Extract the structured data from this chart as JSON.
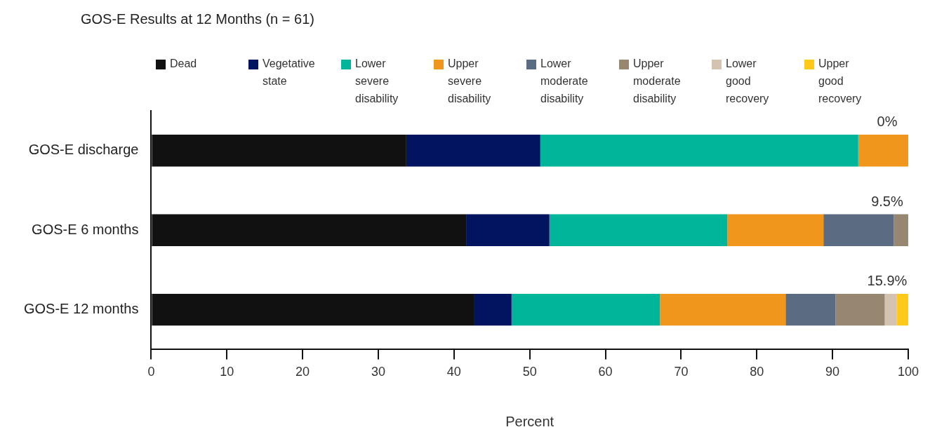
{
  "chart_data": {
    "type": "bar",
    "orientation": "horizontal",
    "stacked": true,
    "title": "GOS-E Results at 12 Months (n = 61)",
    "xlabel": "Percent",
    "categories": [
      "GOS-E discharge",
      "GOS-E 6 months",
      "GOS-E 12 months"
    ],
    "series": [
      {
        "name": "Dead",
        "color": "#111111",
        "values": [
          33.7,
          41.6,
          42.7
        ]
      },
      {
        "name": "Vegetative state",
        "color": "#02135f",
        "values": [
          17.7,
          11.0,
          4.9
        ]
      },
      {
        "name": "Lower severe disability",
        "color": "#00b59a",
        "values": [
          42.0,
          23.5,
          19.6
        ]
      },
      {
        "name": "Upper severe disability",
        "color": "#f0961c",
        "values": [
          6.6,
          12.7,
          16.6
        ]
      },
      {
        "name": "Lower moderate disability",
        "color": "#5a6b82",
        "values": [
          null,
          9.3,
          6.6
        ]
      },
      {
        "name": "Upper moderate disability",
        "color": "#978670",
        "values": [
          null,
          1.9,
          6.5
        ]
      },
      {
        "name": "Lower good recovery",
        "color": "#d3c3b0",
        "values": [
          null,
          null,
          1.6
        ]
      },
      {
        "name": "Upper good recovery",
        "color": "#ffc91a",
        "values": [
          null,
          null,
          1.5
        ]
      }
    ],
    "xlim": [
      0,
      100
    ],
    "xticks": [
      0,
      10,
      20,
      30,
      40,
      50,
      60,
      70,
      80,
      90,
      100
    ],
    "grid": false,
    "legend": "top",
    "annotations": [
      "0%",
      "9.5%",
      "15.9%"
    ]
  }
}
